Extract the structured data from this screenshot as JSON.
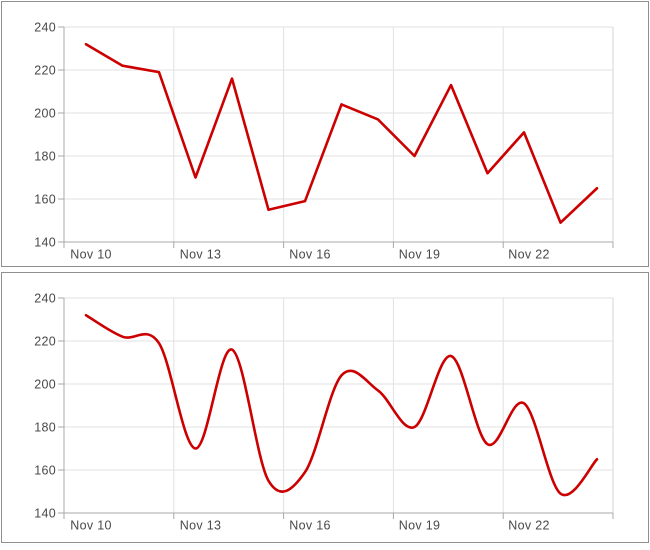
{
  "palette": {
    "line": "#cc0000",
    "grid": "#e2e2e2",
    "plot_border_right": "#d4d4d4",
    "axis": "#a8a8a8",
    "label": "#494949",
    "panel_border": "#8f8f8f",
    "panel_bg": "#ffffff"
  },
  "chart_data": [
    {
      "type": "line",
      "line_shape": "linear",
      "title": "",
      "xlabel": "",
      "ylabel": "",
      "categories": [
        "Nov 10",
        "Nov 11",
        "Nov 12",
        "Nov 13",
        "Nov 14",
        "Nov 15",
        "Nov 16",
        "Nov 17",
        "Nov 18",
        "Nov 19",
        "Nov 20",
        "Nov 21",
        "Nov 22",
        "Nov 23",
        "Nov 24"
      ],
      "values": [
        232,
        222,
        219,
        170,
        216,
        155,
        159,
        204,
        197,
        180,
        213,
        172,
        191,
        149,
        165
      ],
      "series_color": "#cc0000",
      "x_tick_labels": [
        "Nov 10",
        "Nov 13",
        "Nov 16",
        "Nov 19",
        "Nov 22"
      ],
      "y_ticks": [
        140,
        160,
        180,
        200,
        220,
        240
      ],
      "ylim": [
        140,
        240
      ],
      "grid": true,
      "legend": false
    },
    {
      "type": "line",
      "line_shape": "spline",
      "title": "",
      "xlabel": "",
      "ylabel": "",
      "categories": [
        "Nov 10",
        "Nov 11",
        "Nov 12",
        "Nov 13",
        "Nov 14",
        "Nov 15",
        "Nov 16",
        "Nov 17",
        "Nov 18",
        "Nov 19",
        "Nov 20",
        "Nov 21",
        "Nov 22",
        "Nov 23",
        "Nov 24"
      ],
      "values": [
        232,
        222,
        219,
        170,
        216,
        155,
        159,
        204,
        197,
        180,
        213,
        172,
        191,
        149,
        165
      ],
      "series_color": "#cc0000",
      "x_tick_labels": [
        "Nov 10",
        "Nov 13",
        "Nov 16",
        "Nov 19",
        "Nov 22"
      ],
      "y_ticks": [
        140,
        160,
        180,
        200,
        220,
        240
      ],
      "ylim": [
        140,
        240
      ],
      "grid": true,
      "legend": false
    }
  ]
}
